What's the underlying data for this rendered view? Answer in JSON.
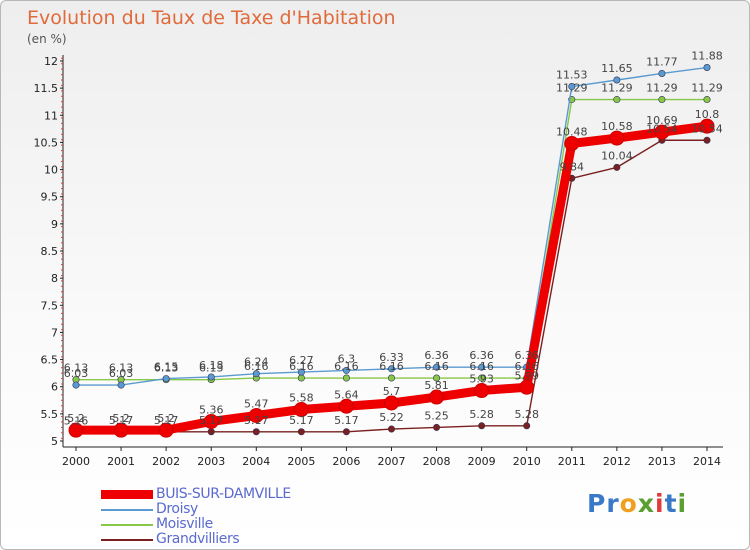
{
  "header": {
    "title": "Evolution du Taux de Taxe d'Habitation",
    "unit": "(en %)"
  },
  "logo": {
    "letters": [
      "P",
      "r",
      "o",
      "x",
      "i",
      "t",
      "i"
    ],
    "colors": [
      "#3a78c8",
      "#3a78c8",
      "#f0a020",
      "#5aa030",
      "#e03a3a",
      "#3a78c8",
      "#5aa030"
    ]
  },
  "chart_data": {
    "type": "line",
    "title": "Evolution du Taux de Taxe d'Habitation",
    "ylabel": "(en %)",
    "xlabel": "",
    "x": [
      "2000",
      "2001",
      "2002",
      "2003",
      "2004",
      "2005",
      "2006",
      "2007",
      "2008",
      "2009",
      "2010",
      "2011",
      "2012",
      "2013",
      "2014"
    ],
    "ylim": [
      5,
      12
    ],
    "yticks": [
      "5",
      "5.5",
      "6",
      "6.5",
      "7",
      "7.5",
      "8",
      "8.5",
      "9",
      "9.5",
      "10",
      "10.5",
      "11",
      "11.5",
      "12"
    ],
    "grid": false,
    "legend_position": "bottom-left",
    "series": [
      {
        "name": "BUIS-SUR-DAMVILLE",
        "color": "#ee0000",
        "values": [
          5.2,
          5.2,
          5.2,
          5.36,
          5.47,
          5.58,
          5.64,
          5.7,
          5.81,
          5.93,
          5.99,
          10.48,
          10.58,
          10.69,
          10.8
        ],
        "labels": [
          "5.2",
          "5.2",
          "5.2",
          "5.36",
          "5.47",
          "5.58",
          "5.64",
          "5.7",
          "5.81",
          "5.93",
          "5.99",
          "10.48",
          "10.58",
          "10.69",
          "10.8"
        ]
      },
      {
        "name": "Droisy",
        "color": "#5a9ad0",
        "values": [
          6.03,
          6.03,
          6.15,
          6.18,
          6.24,
          6.27,
          6.3,
          6.33,
          6.36,
          6.36,
          6.36,
          11.53,
          11.65,
          11.77,
          11.88
        ],
        "labels": [
          "6.03",
          "6.03",
          "6.15",
          "6.18",
          "6.24",
          "6.27",
          "6.3",
          "6.33",
          "6.36",
          "6.36",
          "6.36",
          "11.53",
          "11.65",
          "11.77",
          "11.88"
        ]
      },
      {
        "name": "Moisville",
        "color": "#88c848",
        "values": [
          6.13,
          6.13,
          6.13,
          6.13,
          6.16,
          6.16,
          6.16,
          6.16,
          6.16,
          6.16,
          6.16,
          11.29,
          11.29,
          11.29,
          11.29
        ],
        "labels": [
          "6.13",
          "6.13",
          "6.13",
          "6.13",
          "6.16",
          "6.16",
          "6.16",
          "6.16",
          "6.16",
          "6.16",
          "6.16",
          "11.29",
          "11.29",
          "11.29",
          "11.29"
        ]
      },
      {
        "name": "Grandvilliers",
        "color": "#7a2020",
        "values": [
          5.16,
          5.17,
          5.17,
          5.17,
          5.17,
          5.17,
          5.17,
          5.22,
          5.25,
          5.28,
          5.28,
          9.84,
          10.04,
          10.54,
          10.54
        ],
        "labels": [
          "5.16",
          "5.17",
          "5.17",
          "5.17",
          "5.17",
          "5.17",
          "5.17",
          "5.22",
          "5.25",
          "5.28",
          "5.28",
          "9.84",
          "10.04",
          "10.54",
          "10.54"
        ]
      }
    ]
  }
}
